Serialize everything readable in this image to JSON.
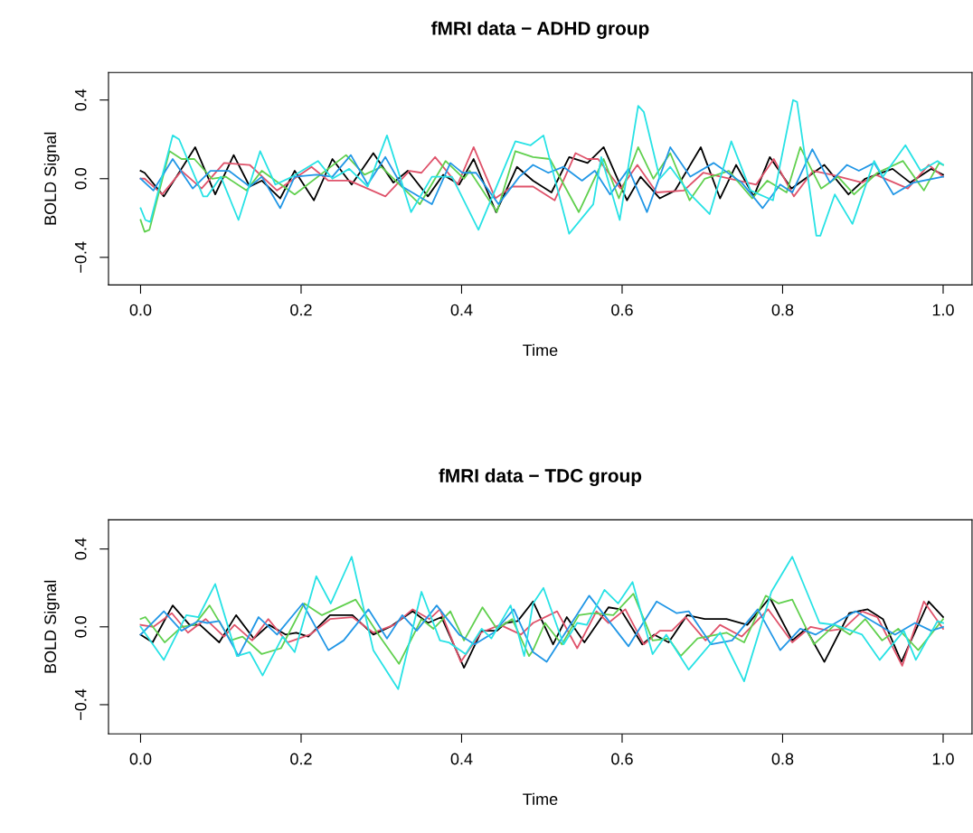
{
  "chart_data": [
    {
      "type": "line",
      "title": "fMRI data − ADHD group",
      "xlabel": "Time",
      "ylabel": "BOLD Signal",
      "xlim": [
        -0.04,
        1.036
      ],
      "ylim": [
        -0.54,
        0.54
      ],
      "xticks": [
        {
          "value": 0,
          "label": "0.0"
        },
        {
          "value": 0.2,
          "label": "0.2"
        },
        {
          "value": 0.4,
          "label": "0.4"
        },
        {
          "value": 0.6,
          "label": "0.6"
        },
        {
          "value": 0.8,
          "label": "0.8"
        },
        {
          "value": 1.0,
          "label": "1.0"
        }
      ],
      "yticks": [
        {
          "value": -0.4,
          "label": "−0.4"
        },
        {
          "value": 0,
          "label": "0.0"
        },
        {
          "value": 0.4,
          "label": "0.4"
        }
      ],
      "grid": false,
      "marker": "none",
      "line_style": "solid",
      "series": [
        {
          "color": "#000000",
          "x": [
            0,
            0.005,
            0.029,
            0.068,
            0.093,
            0.116,
            0.136,
            0.151,
            0.174,
            0.192,
            0.216,
            0.239,
            0.263,
            0.29,
            0.315,
            0.333,
            0.358,
            0.377,
            0.397,
            0.415,
            0.443,
            0.469,
            0.489,
            0.512,
            0.534,
            0.557,
            0.577,
            0.606,
            0.623,
            0.647,
            0.666,
            0.698,
            0.722,
            0.742,
            0.764,
            0.784,
            0.811,
            0.852,
            0.882,
            0.903,
            0.937,
            0.959,
            0.985,
            1.0
          ],
          "values": [
            0.04,
            0.03,
            -0.09,
            0.16,
            -0.08,
            0.12,
            -0.04,
            -0.01,
            -0.1,
            0.04,
            -0.11,
            0.1,
            -0.03,
            0.13,
            -0.02,
            0.04,
            -0.09,
            0.02,
            -0.03,
            0.1,
            -0.17,
            0.06,
            -0.01,
            -0.07,
            0.11,
            0.08,
            0.16,
            -0.11,
            0.01,
            -0.1,
            -0.06,
            0.16,
            -0.1,
            0.07,
            -0.09,
            0.11,
            -0.05,
            0.07,
            -0.08,
            0.0,
            0.05,
            -0.02,
            0.05,
            0.02
          ]
        },
        {
          "color": "#df536b",
          "x": [
            0,
            0.005,
            0.027,
            0.051,
            0.076,
            0.104,
            0.136,
            0.17,
            0.213,
            0.234,
            0.26,
            0.305,
            0.335,
            0.35,
            0.367,
            0.395,
            0.415,
            0.442,
            0.463,
            0.489,
            0.516,
            0.542,
            0.557,
            0.57,
            0.598,
            0.619,
            0.643,
            0.677,
            0.701,
            0.767,
            0.789,
            0.814,
            0.838,
            0.861,
            0.899,
            0.916,
            0.956,
            0.982,
            1.0
          ],
          "values": [
            0.0,
            0.0,
            -0.08,
            0.04,
            -0.05,
            0.08,
            0.07,
            -0.06,
            0.06,
            -0.01,
            -0.01,
            -0.09,
            0.04,
            0.03,
            0.11,
            -0.03,
            0.16,
            -0.1,
            -0.04,
            -0.04,
            -0.11,
            0.13,
            0.1,
            0.1,
            -0.05,
            0.07,
            -0.07,
            -0.06,
            0.03,
            -0.03,
            0.1,
            -0.09,
            0.04,
            0.02,
            -0.02,
            0.02,
            -0.05,
            0.07,
            0.01
          ]
        },
        {
          "color": "#61d04f",
          "x": [
            0,
            0.005,
            0.011,
            0.036,
            0.051,
            0.067,
            0.089,
            0.106,
            0.132,
            0.151,
            0.192,
            0.256,
            0.279,
            0.3,
            0.348,
            0.38,
            0.403,
            0.41,
            0.444,
            0.467,
            0.489,
            0.51,
            0.546,
            0.577,
            0.596,
            0.62,
            0.639,
            0.66,
            0.684,
            0.703,
            0.733,
            0.762,
            0.781,
            0.805,
            0.822,
            0.848,
            0.869,
            0.889,
            0.918,
            0.95,
            0.976,
            0.995,
            1.0
          ],
          "values": [
            -0.21,
            -0.27,
            -0.26,
            0.14,
            0.1,
            0.1,
            0.0,
            0.01,
            -0.06,
            0.04,
            -0.08,
            0.12,
            0.02,
            0.06,
            -0.13,
            0.09,
            0.0,
            0.04,
            -0.17,
            0.14,
            0.11,
            0.1,
            -0.17,
            0.1,
            -0.1,
            0.16,
            0.0,
            0.13,
            -0.11,
            0.0,
            0.04,
            -0.1,
            -0.01,
            -0.07,
            0.16,
            -0.05,
            0.01,
            -0.08,
            0.03,
            0.09,
            -0.06,
            0.08,
            0.07
          ]
        },
        {
          "color": "#2297e6",
          "x": [
            0,
            0.016,
            0.04,
            0.065,
            0.087,
            0.11,
            0.136,
            0.151,
            0.174,
            0.192,
            0.219,
            0.239,
            0.262,
            0.283,
            0.305,
            0.326,
            0.363,
            0.386,
            0.401,
            0.418,
            0.446,
            0.472,
            0.489,
            0.508,
            0.527,
            0.55,
            0.566,
            0.585,
            0.608,
            0.631,
            0.66,
            0.685,
            0.714,
            0.749,
            0.775,
            0.797,
            0.812,
            0.837,
            0.859,
            0.88,
            0.895,
            0.914,
            0.938,
            0.963,
            1.0
          ],
          "values": [
            0.0,
            -0.06,
            0.1,
            -0.05,
            0.04,
            0.04,
            -0.04,
            0.01,
            -0.15,
            0.01,
            0.02,
            0.01,
            0.12,
            -0.03,
            0.11,
            -0.04,
            -0.13,
            0.08,
            0.03,
            0.03,
            -0.13,
            0.01,
            0.07,
            0.03,
            0.06,
            -0.01,
            0.04,
            -0.08,
            0.05,
            -0.17,
            0.16,
            0.01,
            0.08,
            -0.02,
            -0.15,
            -0.03,
            -0.07,
            0.15,
            -0.02,
            0.07,
            0.04,
            0.08,
            -0.08,
            -0.02,
            0.01
          ]
        },
        {
          "color": "#28e2e5",
          "x": [
            0,
            0.006,
            0.012,
            0.04,
            0.048,
            0.078,
            0.083,
            0.1,
            0.122,
            0.149,
            0.168,
            0.189,
            0.221,
            0.239,
            0.26,
            0.283,
            0.307,
            0.337,
            0.363,
            0.388,
            0.421,
            0.467,
            0.486,
            0.502,
            0.534,
            0.564,
            0.574,
            0.597,
            0.62,
            0.627,
            0.647,
            0.66,
            0.685,
            0.709,
            0.736,
            0.76,
            0.788,
            0.813,
            0.818,
            0.842,
            0.847,
            0.865,
            0.887,
            0.914,
            0.925,
            0.953,
            0.972,
            0.993,
            1.0
          ],
          "values": [
            -0.15,
            -0.21,
            -0.22,
            0.22,
            0.2,
            -0.09,
            -0.09,
            0.01,
            -0.21,
            0.14,
            -0.03,
            0.01,
            0.09,
            0.0,
            0.05,
            -0.04,
            0.22,
            -0.17,
            0.01,
            0.01,
            -0.26,
            0.19,
            0.17,
            0.22,
            -0.28,
            -0.13,
            0.11,
            -0.21,
            0.37,
            0.34,
            0.0,
            0.06,
            -0.08,
            -0.18,
            0.19,
            -0.06,
            -0.11,
            0.4,
            0.39,
            -0.29,
            -0.29,
            -0.08,
            -0.23,
            0.09,
            0.01,
            0.17,
            0.04,
            0.09,
            0.07
          ]
        }
      ]
    },
    {
      "type": "line",
      "title": "fMRI data − TDC group",
      "xlabel": "Time",
      "ylabel": "BOLD Signal",
      "xlim": [
        -0.04,
        1.036
      ],
      "ylim": [
        -0.55,
        0.55
      ],
      "xticks": [
        {
          "value": 0,
          "label": "0.0"
        },
        {
          "value": 0.2,
          "label": "0.2"
        },
        {
          "value": 0.4,
          "label": "0.4"
        },
        {
          "value": 0.6,
          "label": "0.6"
        },
        {
          "value": 0.8,
          "label": "0.8"
        },
        {
          "value": 1.0,
          "label": "1.0"
        }
      ],
      "yticks": [
        {
          "value": -0.4,
          "label": "−0.4"
        },
        {
          "value": 0,
          "label": "0.0"
        },
        {
          "value": 0.4,
          "label": "0.4"
        }
      ],
      "grid": false,
      "marker": "none",
      "line_style": "solid",
      "series": [
        {
          "color": "#000000",
          "x": [
            0,
            0.015,
            0.04,
            0.061,
            0.074,
            0.098,
            0.119,
            0.141,
            0.16,
            0.181,
            0.194,
            0.209,
            0.236,
            0.264,
            0.29,
            0.311,
            0.339,
            0.358,
            0.375,
            0.403,
            0.425,
            0.444,
            0.455,
            0.47,
            0.489,
            0.514,
            0.531,
            0.553,
            0.583,
            0.598,
            0.625,
            0.64,
            0.658,
            0.681,
            0.703,
            0.73,
            0.756,
            0.784,
            0.812,
            0.829,
            0.852,
            0.883,
            0.906,
            0.925,
            0.948,
            0.982,
            1.0
          ],
          "values": [
            -0.04,
            -0.08,
            0.11,
            0.01,
            0.01,
            -0.08,
            0.06,
            -0.06,
            0.01,
            -0.04,
            -0.03,
            -0.05,
            0.06,
            0.06,
            -0.04,
            0.0,
            0.08,
            0.02,
            0.05,
            -0.21,
            -0.02,
            -0.02,
            0.02,
            0.03,
            0.13,
            -0.09,
            0.05,
            -0.08,
            0.1,
            0.09,
            -0.09,
            -0.04,
            -0.08,
            0.06,
            0.04,
            0.04,
            0.01,
            0.15,
            -0.07,
            -0.01,
            -0.18,
            0.07,
            0.09,
            0.04,
            -0.18,
            0.13,
            0.05
          ]
        },
        {
          "color": "#df536b",
          "x": [
            0,
            0.016,
            0.039,
            0.059,
            0.081,
            0.104,
            0.117,
            0.139,
            0.159,
            0.183,
            0.211,
            0.236,
            0.264,
            0.29,
            0.316,
            0.339,
            0.36,
            0.373,
            0.399,
            0.424,
            0.448,
            0.474,
            0.489,
            0.519,
            0.544,
            0.568,
            0.583,
            0.604,
            0.627,
            0.647,
            0.662,
            0.679,
            0.704,
            0.722,
            0.749,
            0.782,
            0.812,
            0.835,
            0.858,
            0.876,
            0.899,
            0.918,
            0.949,
            0.976,
            1.0
          ],
          "values": [
            0.01,
            0.0,
            0.07,
            -0.03,
            0.04,
            -0.05,
            0.01,
            -0.07,
            0.04,
            -0.08,
            -0.04,
            0.04,
            0.05,
            -0.03,
            0.01,
            0.09,
            0.04,
            0.09,
            -0.18,
            -0.03,
            0.01,
            -0.04,
            0.02,
            0.08,
            -0.11,
            0.08,
            0.02,
            0.09,
            -0.09,
            -0.02,
            -0.02,
            0.05,
            -0.07,
            0.01,
            -0.05,
            0.09,
            -0.08,
            0.0,
            -0.02,
            -0.01,
            0.08,
            0.05,
            -0.2,
            0.13,
            -0.01
          ]
        },
        {
          "color": "#61d04f",
          "x": [
            0,
            0.006,
            0.03,
            0.051,
            0.067,
            0.086,
            0.112,
            0.127,
            0.151,
            0.175,
            0.204,
            0.226,
            0.268,
            0.298,
            0.322,
            0.35,
            0.365,
            0.386,
            0.403,
            0.426,
            0.444,
            0.463,
            0.484,
            0.489,
            0.504,
            0.525,
            0.546,
            0.564,
            0.589,
            0.614,
            0.638,
            0.658,
            0.673,
            0.694,
            0.73,
            0.752,
            0.779,
            0.795,
            0.812,
            0.839,
            0.865,
            0.884,
            0.903,
            0.924,
            0.944,
            0.969,
            1.0
          ],
          "values": [
            0.04,
            0.05,
            -0.08,
            0.0,
            0.01,
            0.11,
            -0.07,
            -0.05,
            -0.14,
            -0.11,
            0.12,
            0.06,
            0.14,
            -0.05,
            -0.19,
            0.04,
            -0.01,
            0.08,
            -0.07,
            0.1,
            -0.01,
            0.04,
            -0.15,
            -0.12,
            0.02,
            -0.09,
            0.06,
            0.07,
            0.06,
            0.17,
            -0.07,
            -0.06,
            -0.15,
            -0.06,
            -0.03,
            -0.08,
            0.16,
            0.12,
            0.14,
            -0.09,
            0.01,
            -0.04,
            0.04,
            -0.07,
            -0.01,
            -0.12,
            0.04
          ]
        },
        {
          "color": "#2297e6",
          "x": [
            0,
            0.029,
            0.051,
            0.072,
            0.083,
            0.098,
            0.122,
            0.147,
            0.17,
            0.202,
            0.234,
            0.253,
            0.284,
            0.307,
            0.326,
            0.344,
            0.369,
            0.397,
            0.416,
            0.44,
            0.465,
            0.489,
            0.506,
            0.559,
            0.608,
            0.643,
            0.668,
            0.683,
            0.711,
            0.737,
            0.769,
            0.797,
            0.822,
            0.841,
            0.891,
            0.94,
            0.965,
            0.985,
            1.0
          ],
          "values": [
            -0.04,
            0.08,
            -0.02,
            0.03,
            0.02,
            0.03,
            -0.15,
            0.05,
            -0.04,
            0.12,
            -0.12,
            -0.07,
            0.09,
            -0.06,
            0.06,
            -0.02,
            0.11,
            -0.04,
            -0.09,
            -0.03,
            0.09,
            -0.13,
            -0.18,
            0.16,
            -0.1,
            0.13,
            0.07,
            0.08,
            -0.09,
            -0.07,
            0.09,
            -0.12,
            -0.01,
            -0.04,
            0.08,
            -0.04,
            0.02,
            -0.02,
            0.0
          ]
        },
        {
          "color": "#28e2e5",
          "x": [
            0,
            0.029,
            0.057,
            0.072,
            0.093,
            0.12,
            0.136,
            0.152,
            0.177,
            0.192,
            0.219,
            0.237,
            0.263,
            0.29,
            0.321,
            0.35,
            0.373,
            0.384,
            0.405,
            0.425,
            0.437,
            0.461,
            0.478,
            0.489,
            0.502,
            0.527,
            0.544,
            0.556,
            0.578,
            0.595,
            0.613,
            0.638,
            0.655,
            0.683,
            0.722,
            0.752,
            0.786,
            0.812,
            0.846,
            0.865,
            0.899,
            0.921,
            0.951,
            0.966,
            0.993,
            1.0
          ],
          "values": [
            0.0,
            -0.17,
            0.06,
            0.05,
            0.22,
            -0.15,
            -0.13,
            -0.25,
            -0.05,
            -0.13,
            0.26,
            0.12,
            0.36,
            -0.12,
            -0.32,
            0.18,
            -0.07,
            -0.08,
            -0.14,
            -0.01,
            -0.06,
            0.11,
            -0.15,
            0.12,
            0.2,
            -0.09,
            0.02,
            0.01,
            0.19,
            0.12,
            0.23,
            -0.14,
            -0.04,
            -0.22,
            -0.03,
            -0.28,
            0.18,
            0.36,
            0.02,
            0.01,
            -0.04,
            -0.17,
            -0.02,
            -0.17,
            0.03,
            0.02
          ]
        }
      ]
    }
  ]
}
